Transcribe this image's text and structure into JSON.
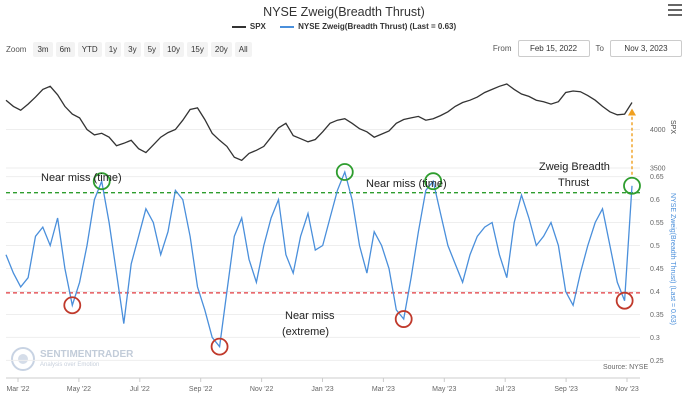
{
  "header": {
    "title": "NYSE Zweig(Breadth Thrust)"
  },
  "legend": [
    {
      "name": "SPX",
      "color": "#333333"
    },
    {
      "name": "NYSE Zweig(Breadth Thrust) (Last = 0.63)",
      "color": "#4a8fdb"
    }
  ],
  "zoom": {
    "label": "Zoom",
    "buttons": [
      "3m",
      "6m",
      "YTD",
      "1y",
      "3y",
      "5y",
      "10y",
      "15y",
      "20y",
      "All"
    ]
  },
  "range": {
    "from_label": "From",
    "from_value": "Feb 15, 2022",
    "to_label": "To",
    "to_value": "Nov 3, 2023"
  },
  "source": "Source: NYSE",
  "watermark": {
    "name": "SENTIMENTRADER",
    "tagline": "Analysis over Emotion"
  },
  "chart_data": {
    "type": "line",
    "x_ticks": [
      "Mar '22",
      "May '22",
      "Jul '22",
      "Sep '22",
      "Nov '22",
      "Jan '23",
      "Mar '23",
      "May '23",
      "Jul '23",
      "Sep '23",
      "Nov '23"
    ],
    "spx": {
      "name": "SPX",
      "axis_title": "SPX",
      "y_ticks": [
        3500,
        4000
      ],
      "ylim": [
        3500,
        4850
      ],
      "values": [
        4380,
        4300,
        4250,
        4330,
        4420,
        4520,
        4560,
        4450,
        4300,
        4200,
        4150,
        4000,
        3930,
        3950,
        3900,
        3790,
        3820,
        3860,
        3750,
        3700,
        3800,
        3900,
        3960,
        4000,
        4120,
        4260,
        4280,
        4130,
        3950,
        3860,
        3780,
        3640,
        3600,
        3690,
        3730,
        3780,
        3900,
        4020,
        4080,
        3920,
        3880,
        3840,
        3870,
        3970,
        4080,
        4120,
        4140,
        4080,
        4010,
        3970,
        3900,
        3940,
        3980,
        4080,
        4130,
        4150,
        4170,
        4120,
        4140,
        4180,
        4230,
        4300,
        4350,
        4380,
        4420,
        4480,
        4520,
        4560,
        4590,
        4520,
        4460,
        4430,
        4380,
        4360,
        4330,
        4360,
        4480,
        4500,
        4490,
        4440,
        4380,
        4300,
        4230,
        4190,
        4200,
        4350
      ]
    },
    "zweig": {
      "name": "NYSE Zweig(Breadth Thrust) (Last = 0.63)",
      "axis_title": "NYSE Zweig(Breadth Thrust) (Last = 0.63)",
      "y_ticks": [
        0.25,
        0.3,
        0.35,
        0.4,
        0.45,
        0.5,
        0.55,
        0.6,
        0.65
      ],
      "ylim": [
        0.24,
        0.66
      ],
      "last": 0.63,
      "threshold_upper": 0.615,
      "threshold_lower": 0.397,
      "values": [
        0.48,
        0.44,
        0.41,
        0.43,
        0.52,
        0.54,
        0.5,
        0.56,
        0.45,
        0.37,
        0.42,
        0.5,
        0.6,
        0.64,
        0.55,
        0.44,
        0.33,
        0.46,
        0.52,
        0.58,
        0.55,
        0.48,
        0.53,
        0.62,
        0.6,
        0.52,
        0.41,
        0.36,
        0.3,
        0.28,
        0.4,
        0.52,
        0.56,
        0.47,
        0.42,
        0.5,
        0.56,
        0.6,
        0.48,
        0.44,
        0.52,
        0.57,
        0.49,
        0.5,
        0.56,
        0.62,
        0.66,
        0.6,
        0.5,
        0.44,
        0.53,
        0.5,
        0.45,
        0.36,
        0.34,
        0.43,
        0.53,
        0.62,
        0.64,
        0.57,
        0.5,
        0.46,
        0.42,
        0.48,
        0.52,
        0.54,
        0.55,
        0.48,
        0.43,
        0.55,
        0.61,
        0.56,
        0.5,
        0.52,
        0.55,
        0.5,
        0.4,
        0.37,
        0.44,
        0.5,
        0.55,
        0.58,
        0.5,
        0.42,
        0.38,
        0.63
      ]
    },
    "annotations": [
      "Near miss (time)",
      "Near miss (time)",
      "Near miss",
      "(extreme)",
      "Zweig Breadth",
      "Thrust"
    ]
  }
}
